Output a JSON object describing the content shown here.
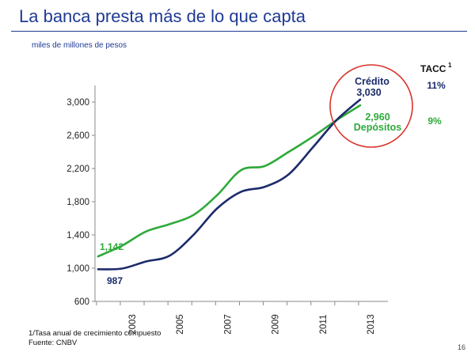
{
  "slide": {
    "title": "La banca presta más de lo que capta",
    "subtitle": "miles de millones de pesos",
    "footnote_1": "1/Tasa anual de crecimiento compuesto",
    "footnote_2": "Fuente: CNBV",
    "page_number": "16"
  },
  "colors": {
    "credito": "#1b2b6b",
    "depositos": "#2eaa3a",
    "title": "#1f3a93",
    "highlight_circle": "#d9332b"
  },
  "chart_data": {
    "type": "line",
    "title": "",
    "xlabel": "",
    "ylabel": "",
    "ylim": [
      600,
      3000
    ],
    "yticks": [
      600,
      1000,
      1400,
      1800,
      2200,
      2600,
      3000
    ],
    "ytick_labels": [
      "600",
      "1,000",
      "1,400",
      "1,800",
      "2,200",
      "2,600",
      "3,000"
    ],
    "xlim": [
      2002,
      2013
    ],
    "xticks": [
      2003,
      2005,
      2007,
      2009,
      2011,
      2013
    ],
    "xtick_labels": [
      "2003",
      "2005",
      "2007",
      "2009",
      "2011",
      "2013"
    ],
    "grid": false,
    "legend": "none",
    "tacc_header": "TACC",
    "tacc_superscript": "1",
    "series": [
      {
        "name": "Crédito",
        "end_label": "3,030",
        "start_label": "987",
        "tacc": "11%",
        "x": [
          2002,
          2003,
          2004,
          2005,
          2006,
          2007,
          2008,
          2009,
          2010,
          2011,
          2012,
          2013
        ],
        "values": [
          987,
          995,
          1080,
          1150,
          1400,
          1720,
          1920,
          1980,
          2130,
          2450,
          2780,
          3030
        ]
      },
      {
        "name": "Depósitos",
        "end_label": "2,960",
        "start_label": "1,142",
        "tacc": "9%",
        "x": [
          2002,
          2003,
          2004,
          2005,
          2006,
          2007,
          2008,
          2009,
          2010,
          2011,
          2012,
          2013
        ],
        "values": [
          1142,
          1270,
          1440,
          1530,
          1640,
          1880,
          2180,
          2230,
          2400,
          2580,
          2780,
          2960
        ]
      }
    ]
  }
}
